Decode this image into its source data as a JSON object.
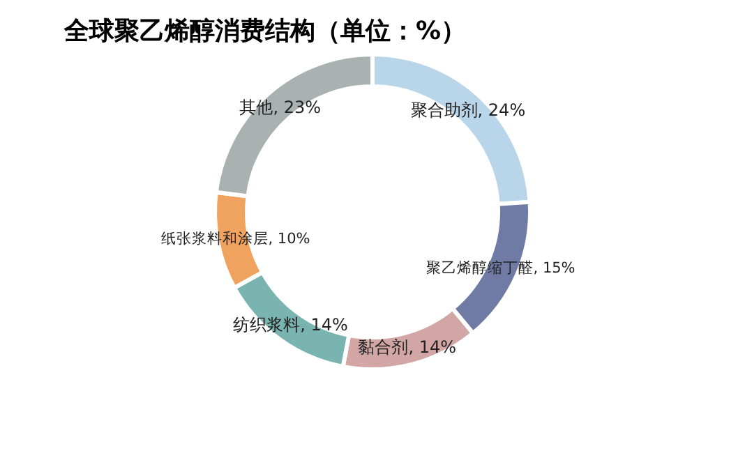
{
  "chart_data": {
    "type": "donut",
    "title": "全球聚乙烯醇消费结构（单位：%）",
    "categories": [
      "聚合助剂",
      "聚乙烯醇缩丁醛",
      "黏合剂",
      "纺织浆料",
      "纸张浆料和涂层",
      "其他"
    ],
    "values": [
      24,
      15,
      14,
      14,
      10,
      23
    ],
    "value_labels": [
      "24%",
      "15%",
      "14%",
      "14%",
      "10%",
      "23%"
    ],
    "colors": [
      "#b9d5e9",
      "#6f7ba4",
      "#d3a6a6",
      "#7ab4b1",
      "#f0a25f",
      "#a9b1b1"
    ]
  }
}
